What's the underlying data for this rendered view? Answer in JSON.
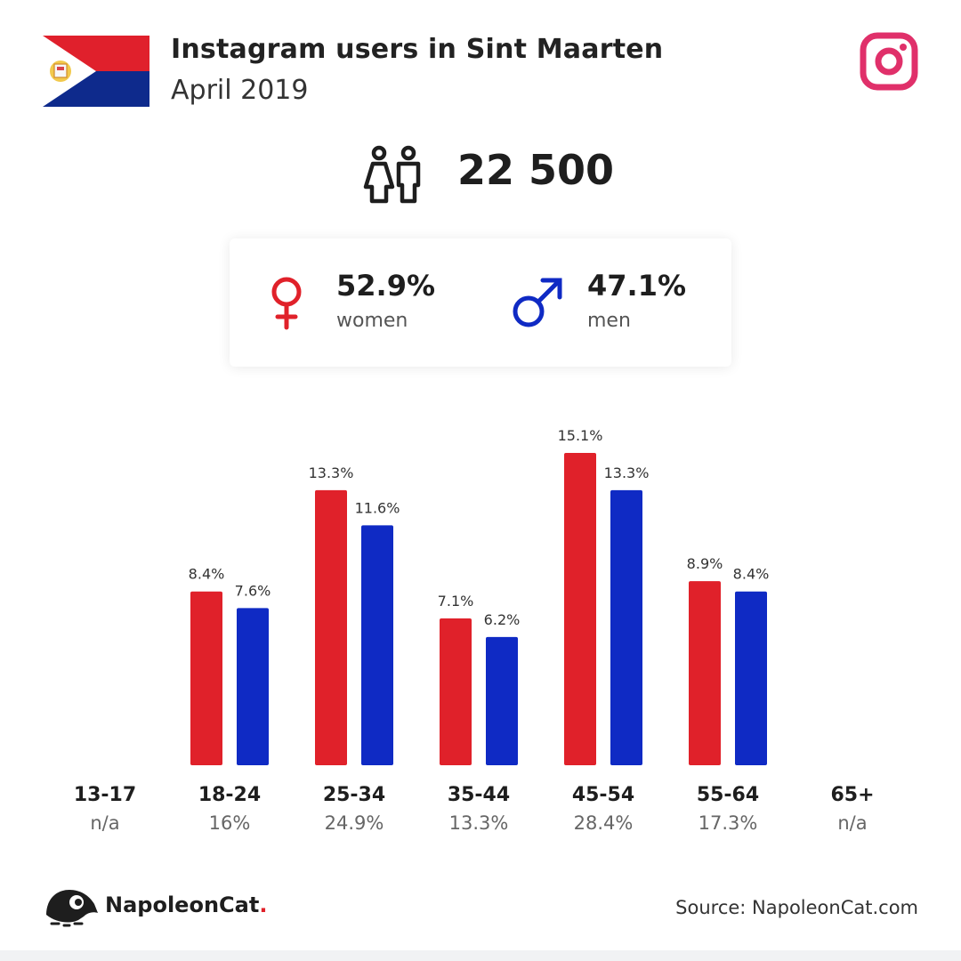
{
  "header": {
    "title": "Instagram users in Sint Maarten",
    "subtitle": "April 2019"
  },
  "total_users": "22 500",
  "gender": {
    "women": {
      "percent": "52.9%",
      "label": "women",
      "color": "#e0212a"
    },
    "men": {
      "percent": "47.1%",
      "label": "men",
      "color": "#0f2ac4"
    }
  },
  "colors": {
    "women": "#e0212a",
    "men": "#0f2ac4",
    "instagram": "#e0306a",
    "flag_red": "#e0202c",
    "flag_blue": "#0e2a8c"
  },
  "chart_data": {
    "type": "bar",
    "categories": [
      "13-17",
      "18-24",
      "25-34",
      "35-44",
      "45-54",
      "55-64",
      "65+"
    ],
    "category_totals": [
      "n/a",
      "16%",
      "24.9%",
      "13.3%",
      "28.4%",
      "17.3%",
      "n/a"
    ],
    "series": [
      {
        "name": "women",
        "color": "#e0212a",
        "values": [
          null,
          8.4,
          13.3,
          7.1,
          15.1,
          8.9,
          null
        ],
        "labels": [
          "",
          "8.4%",
          "13.3%",
          "7.1%",
          "15.1%",
          "8.9%",
          ""
        ]
      },
      {
        "name": "men",
        "color": "#0f2ac4",
        "values": [
          null,
          7.6,
          11.6,
          6.2,
          13.3,
          8.4,
          null
        ],
        "labels": [
          "",
          "7.6%",
          "11.6%",
          "6.2%",
          "13.3%",
          "8.4%",
          ""
        ]
      }
    ],
    "ylim": [
      0,
      15.1
    ],
    "grid": false,
    "legend": "none"
  },
  "footer": {
    "brand": "NapoleonCat",
    "brand_dot": ".",
    "source": "Source: NapoleonCat.com"
  },
  "icons": {
    "flag": "sint-maarten-flag-icon",
    "instagram": "instagram-logo-icon",
    "people": "people-icon",
    "female": "female-symbol-icon",
    "male": "male-symbol-icon",
    "logo": "napoleoncat-logo-icon"
  }
}
